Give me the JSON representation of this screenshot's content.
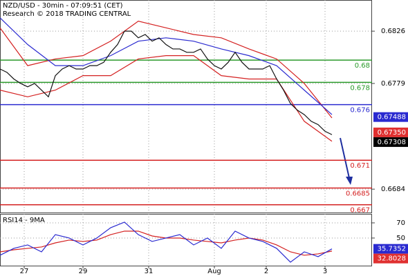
{
  "chart_data": [
    {
      "type": "line",
      "title": "NZD/USD - 30min - 07:09:51 (CET)",
      "subtitle": "Research © 2018 TRADING CENTRAL",
      "xlim": [
        0,
        53.8
      ],
      "ylim": [
        0.6663,
        0.6854
      ],
      "yticks": [
        0.6826,
        0.6779,
        0.6684
      ],
      "series": [
        {
          "color": "#d42020",
          "x": [
            0,
            4,
            8,
            12,
            16,
            20,
            24,
            28,
            32,
            36,
            40,
            44,
            48
          ],
          "values": [
            0.6829,
            0.6795,
            0.6801,
            0.6804,
            0.6817,
            0.6835,
            0.6829,
            0.6823,
            0.682,
            0.681,
            0.6801,
            0.6779,
            0.6748
          ]
        },
        {
          "color": "#d42020",
          "x": [
            0,
            4,
            8,
            12,
            16,
            20,
            24,
            28,
            32,
            36,
            40,
            44,
            48
          ],
          "values": [
            0.6773,
            0.6767,
            0.6773,
            0.6786,
            0.6786,
            0.6801,
            0.6804,
            0.6804,
            0.6786,
            0.6783,
            0.6783,
            0.6745,
            0.6727
          ]
        },
        {
          "color": "#2a2ad0",
          "x": [
            0,
            4,
            8,
            12,
            16,
            20,
            24,
            28,
            32,
            36,
            40,
            44,
            48
          ],
          "values": [
            0.6838,
            0.6814,
            0.6795,
            0.6795,
            0.6804,
            0.6817,
            0.682,
            0.6817,
            0.681,
            0.6804,
            0.6795,
            0.6773,
            0.6751
          ]
        },
        {
          "color": "#111111",
          "x": [
            0,
            1,
            2,
            3,
            4,
            5,
            6,
            7,
            8,
            9,
            10,
            11,
            12,
            13,
            14,
            15,
            16,
            17,
            18,
            19,
            20,
            21,
            22,
            23,
            24,
            25,
            26,
            27,
            28,
            29,
            30,
            31,
            32,
            33,
            34,
            35,
            36,
            37,
            38,
            39,
            40,
            41,
            42,
            43,
            44,
            45,
            46,
            47,
            48
          ],
          "values": [
            0.6792,
            0.6789,
            0.6783,
            0.6779,
            0.6776,
            0.6779,
            0.6773,
            0.6767,
            0.6786,
            0.6792,
            0.6795,
            0.6792,
            0.6792,
            0.6795,
            0.6795,
            0.6798,
            0.6807,
            0.6814,
            0.6826,
            0.6826,
            0.682,
            0.6823,
            0.6817,
            0.682,
            0.6814,
            0.681,
            0.681,
            0.6807,
            0.6807,
            0.681,
            0.6801,
            0.6795,
            0.6792,
            0.6798,
            0.6807,
            0.6798,
            0.6792,
            0.6792,
            0.6792,
            0.6795,
            0.6783,
            0.6773,
            0.6761,
            0.6755,
            0.6751,
            0.6745,
            0.6742,
            0.6736,
            0.6733
          ]
        }
      ],
      "levels": [
        {
          "value": 0.68,
          "color": "#2a9a2a"
        },
        {
          "value": 0.678,
          "color": "#2a9a2a"
        },
        {
          "value": 0.676,
          "color": "#2a2ad0"
        },
        {
          "value": 0.671,
          "color": "#d42020"
        },
        {
          "value": 0.6685,
          "color": "#d42020"
        },
        {
          "value": 0.667,
          "color": "#d42020"
        }
      ],
      "price_tags": [
        {
          "value": 0.67488,
          "color": "#2a2ad0"
        },
        {
          "value": {
            "value": 0.6735,
            "label": "0.67350"
          },
          "color": "#e03030"
        },
        {
          "value": 0.67308,
          "color": "#000000"
        }
      ],
      "grid": true
    },
    {
      "type": "line",
      "title": "RSI14 - 9MA",
      "xlim": [
        0,
        53.8
      ],
      "ylim": [
        13.6,
        81.8
      ],
      "yticks": [
        70,
        50
      ],
      "xticks": [
        {
          "value": 3.5,
          "label": "27"
        },
        {
          "value": 12,
          "label": "29"
        },
        {
          "value": 21.5,
          "label": "31"
        },
        {
          "value": 31,
          "label": "Aug"
        },
        {
          "value": 38.5,
          "label": "2"
        },
        {
          "value": 47,
          "label": "3"
        }
      ],
      "series": [
        {
          "color": "#d42020",
          "x": [
            0,
            2,
            4,
            6,
            8,
            10,
            12,
            14,
            16,
            18,
            20,
            22,
            24,
            26,
            28,
            30,
            32,
            34,
            36,
            38,
            40,
            42,
            44,
            46,
            48
          ],
          "values": [
            31.8,
            34.5,
            36.4,
            38.2,
            43.6,
            47.3,
            45.5,
            47.3,
            54.5,
            59.1,
            59.1,
            52.7,
            50,
            50,
            47.3,
            45.5,
            43.6,
            47.3,
            50,
            47.3,
            40.9,
            31.8,
            27.3,
            29.1,
            32.8
          ]
        },
        {
          "color": "#2a2ad0",
          "x": [
            0,
            2,
            4,
            6,
            8,
            10,
            12,
            14,
            16,
            18,
            20,
            22,
            24,
            26,
            28,
            30,
            32,
            34,
            36,
            38,
            40,
            42,
            44,
            46,
            48
          ],
          "values": [
            27.3,
            36.4,
            40.9,
            31.8,
            54.5,
            50,
            40.9,
            50,
            63.6,
            70.9,
            54.5,
            45.5,
            50,
            54.5,
            40.9,
            50,
            36.4,
            59.1,
            50,
            45.5,
            36.4,
            18.2,
            31.8,
            25.5,
            35.7
          ]
        }
      ],
      "price_tags": [
        {
          "value": 35.7352,
          "color": "#2a2ad0"
        },
        {
          "value": 32.8028,
          "color": "#e03030"
        }
      ],
      "grid": true
    }
  ]
}
